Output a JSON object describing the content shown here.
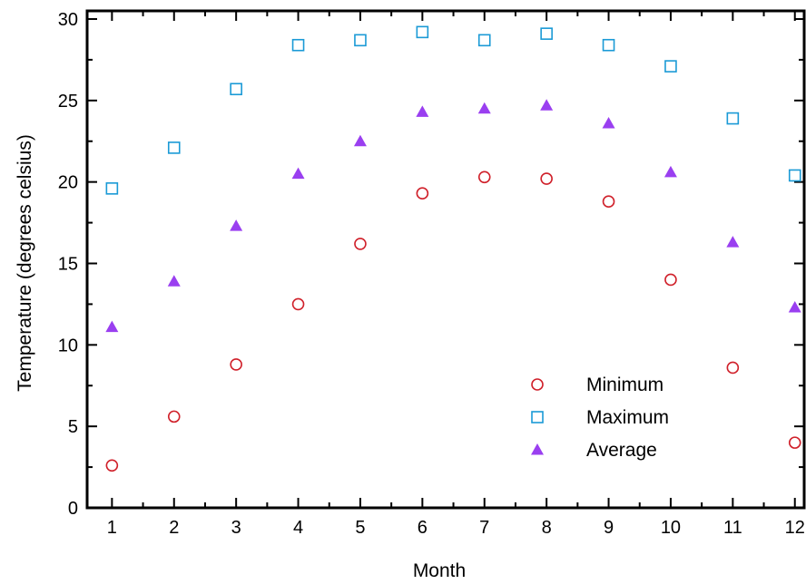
{
  "chart_data": {
    "type": "scatter",
    "xlabel": "Month",
    "ylabel": "Temperature (degrees celsius)",
    "xlim": [
      0.6,
      12.15
    ],
    "ylim": [
      0,
      30.5
    ],
    "x_ticks": [
      1,
      2,
      3,
      4,
      5,
      6,
      7,
      8,
      9,
      10,
      11,
      12
    ],
    "y_ticks": [
      0,
      5,
      10,
      15,
      20,
      25,
      30
    ],
    "grid": false,
    "legend_position": "bottom-right",
    "x": [
      1,
      2,
      3,
      4,
      5,
      6,
      7,
      8,
      9,
      10,
      11,
      12
    ],
    "series": [
      {
        "name": "Minimum",
        "marker": "circle-open",
        "color": "#d0202a",
        "values": [
          2.6,
          5.6,
          8.8,
          12.5,
          16.2,
          19.3,
          20.3,
          20.2,
          18.8,
          14.0,
          8.6,
          4.0
        ]
      },
      {
        "name": "Maximum",
        "marker": "square-open",
        "color": "#1a9ad6",
        "values": [
          19.6,
          22.1,
          25.7,
          28.4,
          28.7,
          29.2,
          28.7,
          29.1,
          28.4,
          27.1,
          23.9,
          20.4
        ]
      },
      {
        "name": "Average",
        "marker": "triangle-filled",
        "color": "#9a3ff0",
        "values": [
          11.1,
          13.9,
          17.3,
          20.5,
          22.5,
          24.3,
          24.5,
          24.7,
          23.6,
          20.6,
          16.3,
          12.3
        ]
      }
    ]
  }
}
